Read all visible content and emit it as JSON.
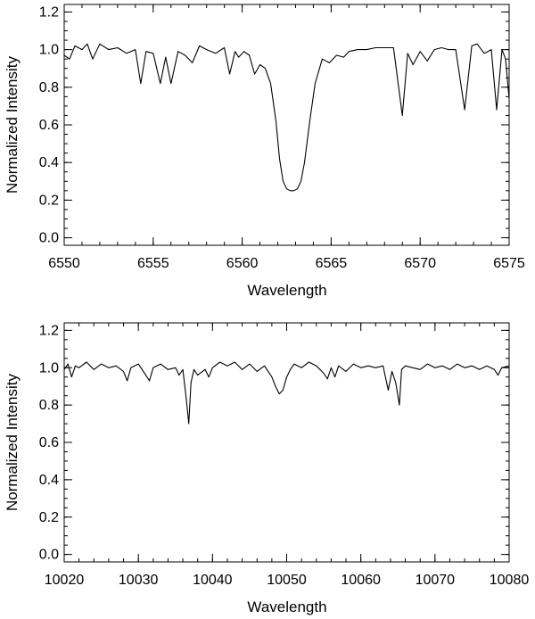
{
  "chart_data": [
    {
      "type": "line",
      "xlabel": "Wavelength",
      "ylabel": "Normalized Intensity",
      "xlim": [
        6550,
        6575
      ],
      "ylim": [
        -0.04,
        1.24
      ],
      "xticks": [
        6550,
        6555,
        6560,
        6565,
        6570,
        6575
      ],
      "xtick_labels": [
        "6550",
        "6555",
        "6560",
        "6565",
        "6570",
        "6575"
      ],
      "xminor_step": 1,
      "yticks": [
        0.0,
        0.2,
        0.4,
        0.6,
        0.8,
        1.0,
        1.2
      ],
      "ytick_labels": [
        "0.0",
        "0.2",
        "0.4",
        "0.6",
        "0.8",
        "1.0",
        "1.2"
      ],
      "yminor_step": 0.05,
      "grid": false,
      "series": [
        {
          "x": [
            6550.0,
            6550.3,
            6550.6,
            6551.0,
            6551.3,
            6551.6,
            6552.0,
            6552.5,
            6553.0,
            6553.5,
            6554.0,
            6554.3,
            6554.6,
            6555.0,
            6555.4,
            6555.7,
            6556.0,
            6556.4,
            6556.8,
            6557.2,
            6557.6,
            6558.0,
            6558.5,
            6559.0,
            6559.3,
            6559.6,
            6559.8,
            6560.1,
            6560.4,
            6560.7,
            6561.0,
            6561.3,
            6561.6,
            6561.9,
            6562.1,
            6562.3,
            6562.5,
            6562.7,
            6562.9,
            6563.1,
            6563.3,
            6563.5,
            6563.8,
            6564.1,
            6564.5,
            6564.9,
            6565.3,
            6565.7,
            6566.0,
            6566.5,
            6567.0,
            6567.5,
            6568.0,
            6568.5,
            6569.0,
            6569.3,
            6569.6,
            6570.0,
            6570.4,
            6570.8,
            6571.2,
            6571.6,
            6572.0,
            6572.5,
            6572.9,
            6573.2,
            6573.6,
            6574.0,
            6574.3,
            6574.6,
            6574.8,
            6575.0
          ],
          "y": [
            0.97,
            0.95,
            1.02,
            1.0,
            1.03,
            0.95,
            1.03,
            1.0,
            1.01,
            0.98,
            1.0,
            0.82,
            0.99,
            0.98,
            0.82,
            0.96,
            0.82,
            0.99,
            0.97,
            0.93,
            1.02,
            1.0,
            0.98,
            1.01,
            0.87,
            0.99,
            0.96,
            0.99,
            0.97,
            0.87,
            0.92,
            0.9,
            0.82,
            0.62,
            0.42,
            0.3,
            0.26,
            0.25,
            0.25,
            0.26,
            0.3,
            0.4,
            0.62,
            0.82,
            0.95,
            0.93,
            0.97,
            0.96,
            0.99,
            1.0,
            1.0,
            1.01,
            1.01,
            1.01,
            0.65,
            0.98,
            0.92,
            0.99,
            0.94,
            1.0,
            1.01,
            1.0,
            1.0,
            0.68,
            1.02,
            1.03,
            0.98,
            1.0,
            0.68,
            1.0,
            0.95,
            0.74
          ]
        }
      ]
    },
    {
      "type": "line",
      "xlabel": "Wavelength",
      "ylabel": "Normalized Intensity",
      "xlim": [
        10020,
        10080
      ],
      "ylim": [
        -0.04,
        1.24
      ],
      "xticks": [
        10020,
        10030,
        10040,
        10050,
        10060,
        10070,
        10080
      ],
      "xtick_labels": [
        "10020",
        "10030",
        "10040",
        "10050",
        "10060",
        "10070",
        "10080"
      ],
      "xminor_step": 2,
      "yticks": [
        0.0,
        0.2,
        0.4,
        0.6,
        0.8,
        1.0,
        1.2
      ],
      "ytick_labels": [
        "0.0",
        "0.2",
        "0.4",
        "0.6",
        "0.8",
        "1.0",
        "1.2"
      ],
      "yminor_step": 0.05,
      "grid": false,
      "series": [
        {
          "x": [
            10020.0,
            10020.5,
            10021.0,
            10021.5,
            10022.0,
            10023.0,
            10024.0,
            10025.0,
            10026.0,
            10027.0,
            10028.0,
            10028.5,
            10029.0,
            10030.0,
            10031.0,
            10031.5,
            10032.0,
            10033.0,
            10034.0,
            10035.0,
            10035.5,
            10036.0,
            10036.5,
            10036.8,
            10037.1,
            10037.5,
            10038.0,
            10039.0,
            10039.5,
            10040.0,
            10041.0,
            10042.0,
            10043.0,
            10044.0,
            10045.0,
            10046.0,
            10047.0,
            10048.0,
            10048.5,
            10049.0,
            10049.5,
            10050.0,
            10050.5,
            10051.0,
            10052.0,
            10053.0,
            10054.0,
            10055.0,
            10055.5,
            10056.0,
            10056.5,
            10057.0,
            10058.0,
            10059.0,
            10060.0,
            10061.0,
            10062.0,
            10063.0,
            10063.7,
            10064.2,
            10064.7,
            10065.2,
            10065.5,
            10066.0,
            10067.0,
            10068.0,
            10069.0,
            10070.0,
            10071.0,
            10072.0,
            10073.0,
            10074.0,
            10075.0,
            10076.0,
            10077.0,
            10078.0,
            10078.5,
            10079.0,
            10080.0
          ],
          "y": [
            0.99,
            1.02,
            0.95,
            1.01,
            1.0,
            1.03,
            0.99,
            1.02,
            1.0,
            1.01,
            0.98,
            0.93,
            1.0,
            1.02,
            0.96,
            0.93,
            1.0,
            1.02,
            0.99,
            1.0,
            0.96,
            0.99,
            0.82,
            0.7,
            0.92,
            0.99,
            0.96,
            0.99,
            0.95,
            1.0,
            1.03,
            1.01,
            1.03,
            0.99,
            1.02,
            0.98,
            1.01,
            0.95,
            0.9,
            0.86,
            0.88,
            0.95,
            0.99,
            1.02,
            1.0,
            1.03,
            1.01,
            0.97,
            0.94,
            1.0,
            0.95,
            1.01,
            0.98,
            1.02,
            1.0,
            1.01,
            1.0,
            1.01,
            0.88,
            0.98,
            0.92,
            0.8,
            0.99,
            1.01,
            1.0,
            0.99,
            1.02,
            1.0,
            1.01,
            0.99,
            1.02,
            1.0,
            1.01,
            0.99,
            1.01,
            0.99,
            0.96,
            1.0,
            1.01
          ]
        }
      ]
    }
  ]
}
